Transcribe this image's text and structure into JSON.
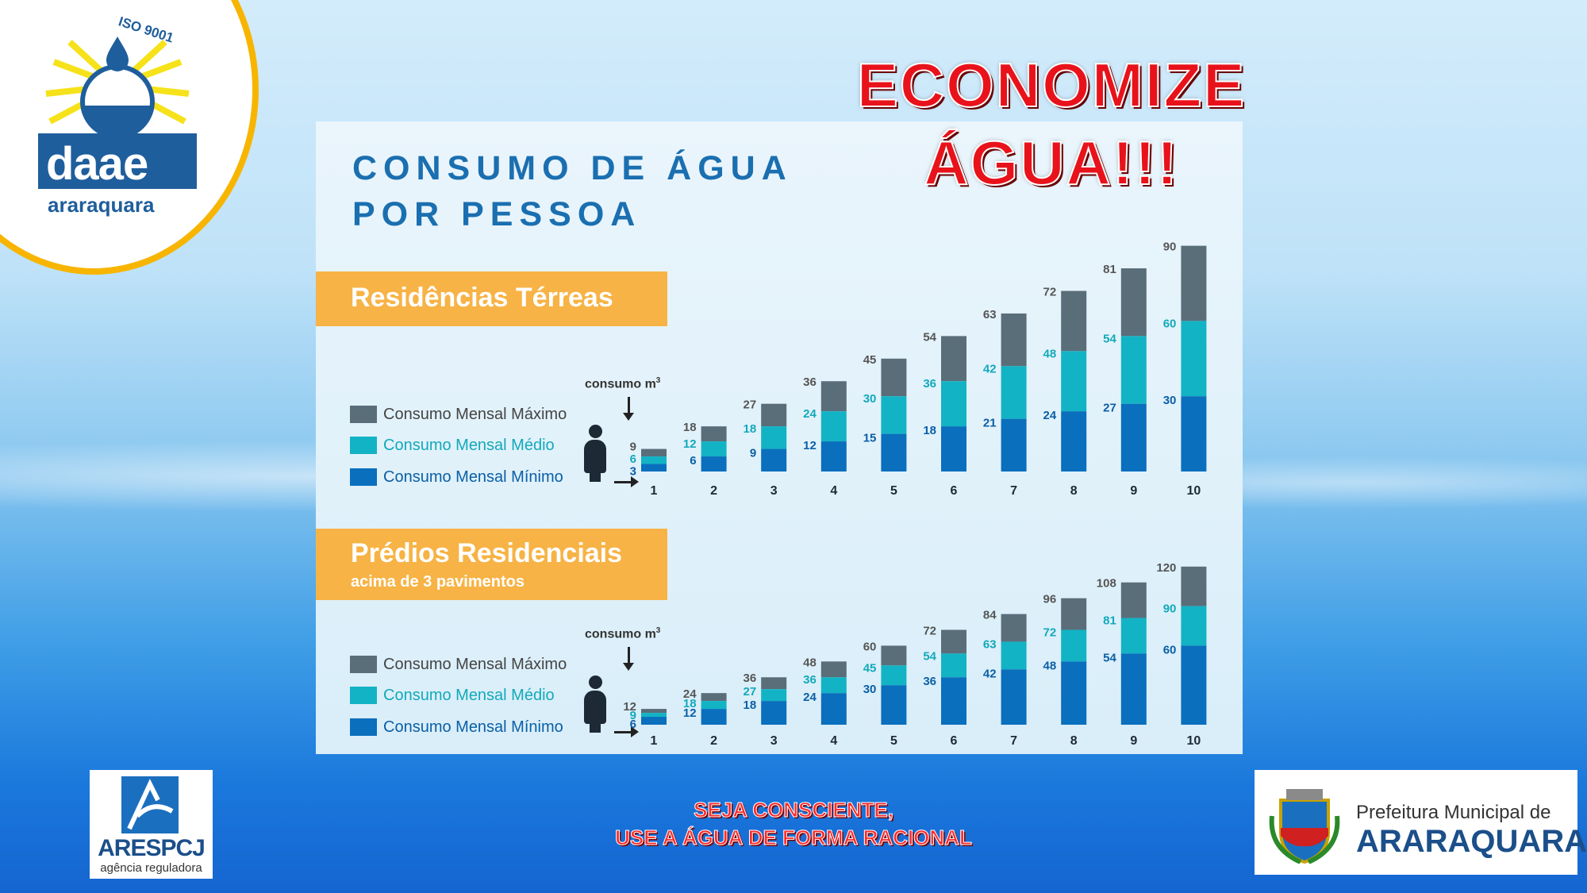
{
  "logos": {
    "daae": {
      "name": "daae",
      "city": "araraquara",
      "cert": "ISO 9001"
    },
    "ares": {
      "name": "ARESPCJ",
      "subtitle": "agência reguladora"
    },
    "prefeitura": {
      "line1": "Prefeitura Municipal de",
      "line2": "ARARAQUARA"
    }
  },
  "headline": {
    "line1": "ECONOMIZE",
    "line2": "ÁGUA!!!"
  },
  "footer": {
    "line1": "SEJA CONSCIENTE,",
    "line2": "USE A ÁGUA DE FORMA RACIONAL"
  },
  "panel": {
    "title_line1": "CONSUMO DE ÁGUA",
    "title_line2": "POR PESSOA"
  },
  "colors": {
    "max": "#5a6e7a",
    "medio": "#12b3c4",
    "min": "#0a6fbd"
  },
  "chart_data": [
    {
      "type": "bar",
      "stacked": true,
      "title": "Residências Térreas",
      "subtitle": "",
      "axis_label": "consumo m³",
      "legend": [
        "Consumo Mensal Máximo",
        "Consumo Mensal Médio",
        "Consumo Mensal Mínimo"
      ],
      "categories": [
        "1",
        "2",
        "3",
        "4",
        "5",
        "6",
        "7",
        "8",
        "9",
        "10"
      ],
      "series": [
        {
          "name": "Consumo Mensal Máximo",
          "values": [
            9,
            18,
            27,
            36,
            45,
            54,
            63,
            72,
            81,
            90
          ]
        },
        {
          "name": "Consumo Mensal Médio",
          "values": [
            6,
            12,
            18,
            24,
            30,
            36,
            42,
            48,
            54,
            60
          ]
        },
        {
          "name": "Consumo Mensal Mínimo",
          "values": [
            3,
            6,
            9,
            12,
            15,
            18,
            21,
            24,
            27,
            30
          ]
        }
      ]
    },
    {
      "type": "bar",
      "stacked": true,
      "title": "Prédios Residenciais",
      "subtitle": "acima de 3 pavimentos",
      "axis_label": "consumo m³",
      "legend": [
        "Consumo Mensal Máximo",
        "Consumo Mensal Médio",
        "Consumo Mensal Mínimo"
      ],
      "categories": [
        "1",
        "2",
        "3",
        "4",
        "5",
        "6",
        "7",
        "8",
        "9",
        "10"
      ],
      "series": [
        {
          "name": "Consumo Mensal Máximo",
          "values": [
            12,
            24,
            36,
            48,
            60,
            72,
            84,
            96,
            108,
            120
          ]
        },
        {
          "name": "Consumo Mensal Médio",
          "values": [
            9,
            18,
            27,
            36,
            45,
            54,
            63,
            72,
            81,
            90
          ]
        },
        {
          "name": "Consumo Mensal Mínimo",
          "values": [
            6,
            12,
            18,
            24,
            30,
            36,
            42,
            48,
            54,
            60
          ]
        }
      ]
    }
  ]
}
